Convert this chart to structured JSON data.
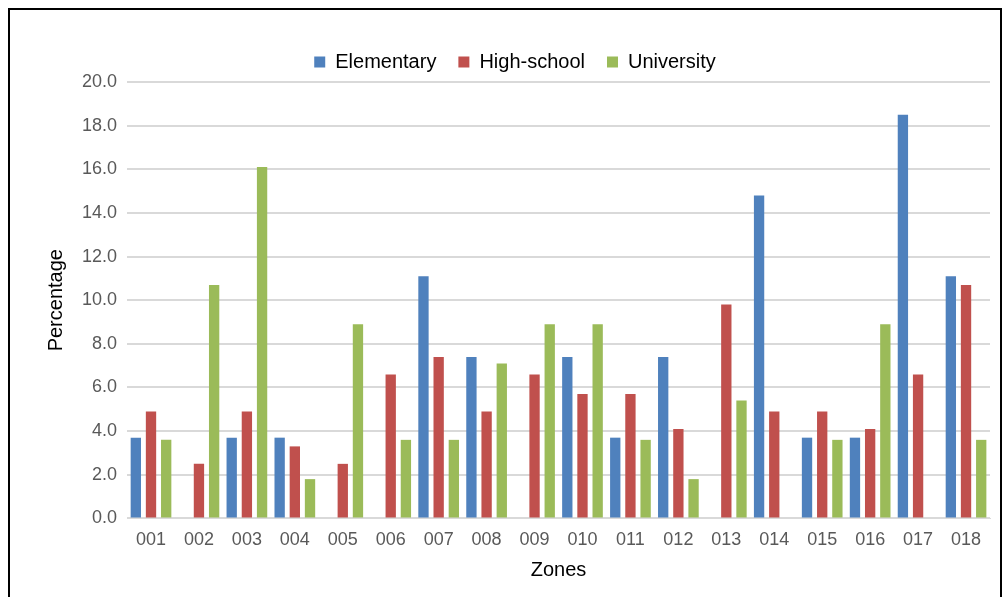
{
  "chart_data": {
    "type": "bar",
    "xlabel": "Zones",
    "ylabel": "Percentage",
    "categories": [
      "001",
      "002",
      "003",
      "004",
      "005",
      "006",
      "007",
      "008",
      "009",
      "010",
      "011",
      "012",
      "013",
      "014",
      "015",
      "016",
      "017",
      "018"
    ],
    "series": [
      {
        "name": "Elementary",
        "color": "#4f81bd",
        "values": [
          3.7,
          0,
          3.7,
          3.7,
          0,
          0,
          11.1,
          7.4,
          0,
          7.4,
          3.7,
          7.4,
          0,
          14.8,
          3.7,
          3.7,
          18.5,
          11.1
        ]
      },
      {
        "name": "High-school",
        "color": "#c0504d",
        "values": [
          4.9,
          2.5,
          4.9,
          3.3,
          2.5,
          6.6,
          7.4,
          4.9,
          6.6,
          5.7,
          5.7,
          4.1,
          9.8,
          4.9,
          4.9,
          4.1,
          6.6,
          10.7
        ]
      },
      {
        "name": "University",
        "color": "#9bbb59",
        "values": [
          3.6,
          10.7,
          16.1,
          1.8,
          8.9,
          3.6,
          3.6,
          7.1,
          8.9,
          8.9,
          3.6,
          1.8,
          5.4,
          0,
          3.6,
          8.9,
          0,
          3.6
        ]
      }
    ],
    "ylim": [
      0,
      20
    ],
    "yticks": [
      {
        "value": 0,
        "label": "0.0"
      },
      {
        "value": 2,
        "label": "2.0"
      },
      {
        "value": 4,
        "label": "4.0"
      },
      {
        "value": 6,
        "label": "6.0"
      },
      {
        "value": 8,
        "label": "8.0"
      },
      {
        "value": 10,
        "label": "10.0"
      },
      {
        "value": 12,
        "label": "12.0"
      },
      {
        "value": 14,
        "label": "14.0"
      },
      {
        "value": 16,
        "label": "16.0"
      },
      {
        "value": 18,
        "label": "18.0"
      },
      {
        "value": 20,
        "label": "20.0"
      }
    ],
    "grid": "y",
    "legend": "top"
  }
}
